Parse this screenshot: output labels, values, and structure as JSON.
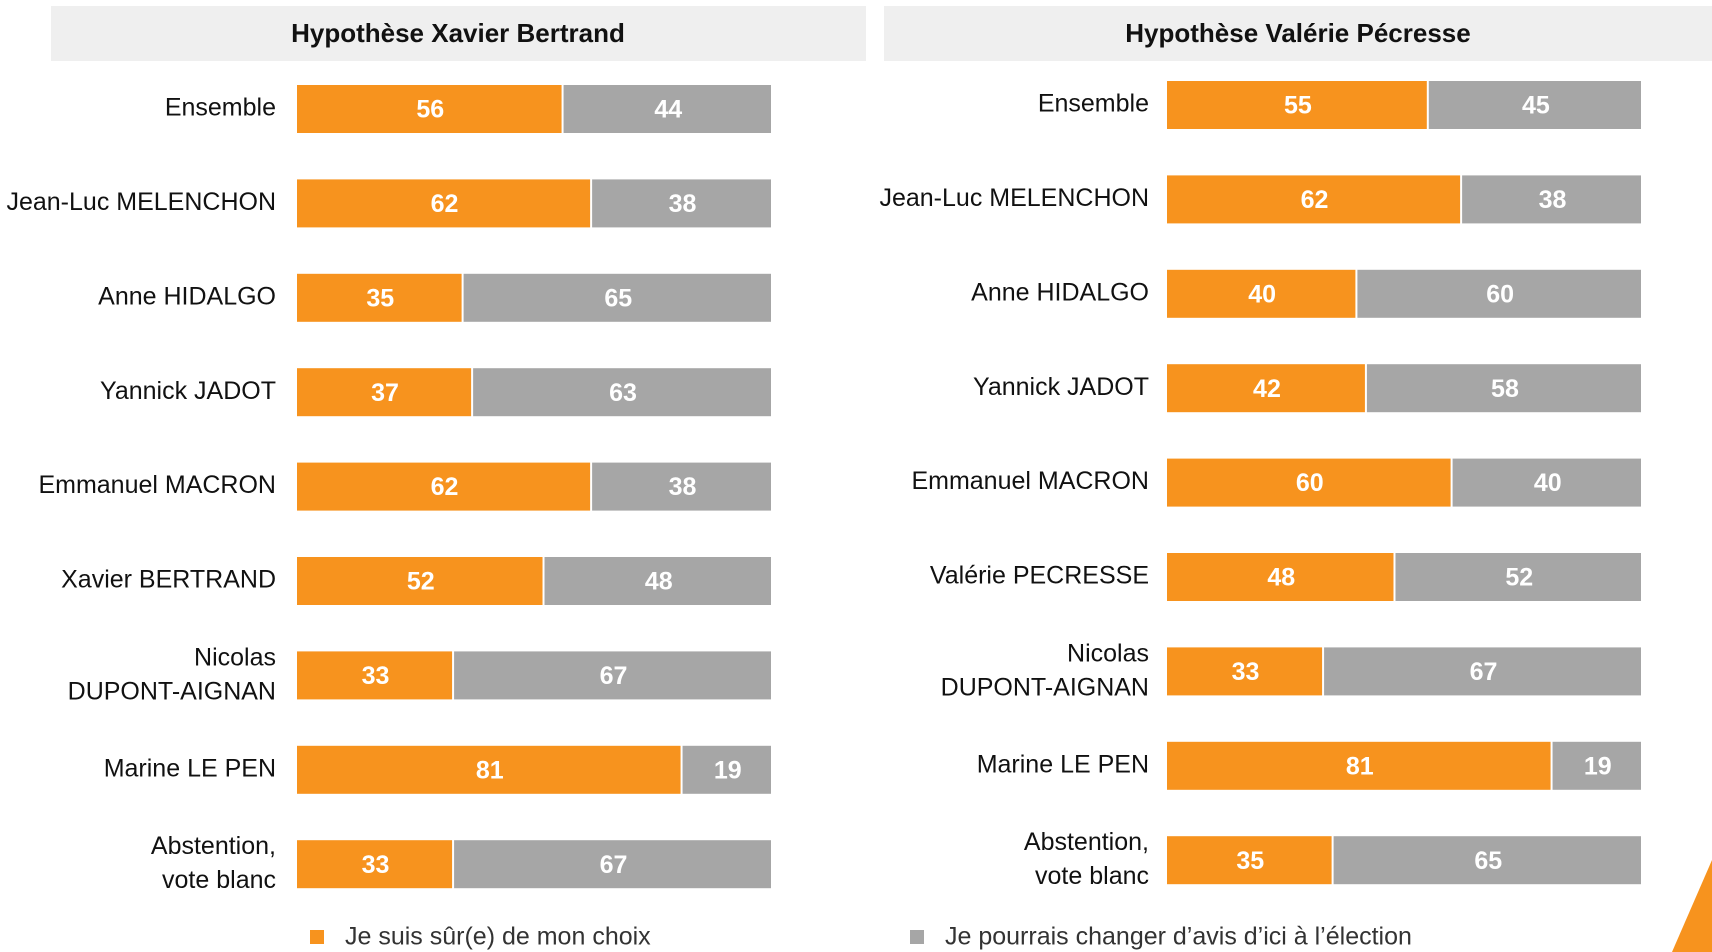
{
  "chart_data": [
    {
      "type": "stacked_bar_h",
      "title": "Hypothèse Xavier Bertrand",
      "categories": [
        "Ensemble",
        "Jean-Luc MELENCHON",
        "Anne HIDALGO",
        "Yannick JADOT",
        "Emmanuel MACRON",
        "Xavier BERTRAND",
        "Nicolas\nDUPONT-AIGNAN",
        "Marine LE PEN",
        "Abstention,\nvote blanc"
      ],
      "xlim": [
        0,
        100
      ],
      "series": [
        {
          "name": "Je suis sûr(e) de mon choix",
          "color": "#F7931E",
          "values": [
            56,
            62,
            35,
            37,
            62,
            52,
            33,
            81,
            33
          ]
        },
        {
          "name": "Je pourrais changer d’avis d’ici à l’élection",
          "color": "#A6A6A6",
          "values": [
            44,
            38,
            65,
            63,
            38,
            48,
            67,
            19,
            67
          ]
        }
      ]
    },
    {
      "type": "stacked_bar_h",
      "title": "Hypothèse Valérie Pécresse",
      "categories": [
        "Ensemble",
        "Jean-Luc MELENCHON",
        "Anne HIDALGO",
        "Yannick JADOT",
        "Emmanuel MACRON",
        "Valérie PECRESSE",
        "Nicolas\nDUPONT-AIGNAN",
        "Marine LE PEN",
        "Abstention,\nvote blanc"
      ],
      "xlim": [
        0,
        100
      ],
      "series": [
        {
          "color": "#F7931E",
          "values": [
            55,
            62,
            40,
            42,
            60,
            48,
            33,
            81,
            35
          ]
        },
        {
          "color": "#A6A6A6",
          "values": [
            45,
            38,
            60,
            58,
            40,
            52,
            67,
            19,
            65
          ]
        }
      ]
    }
  ]
}
